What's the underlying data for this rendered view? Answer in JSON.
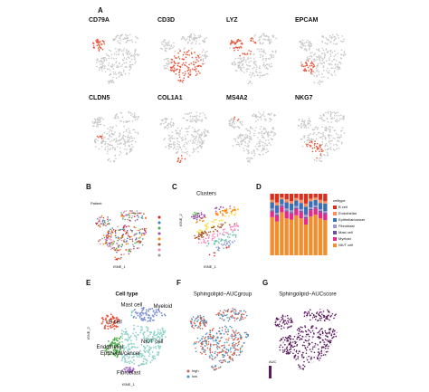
{
  "panel_a": {
    "label": "A",
    "genes": [
      "CD79A",
      "CD3D",
      "LYZ",
      "EPCAM",
      "CLDN5",
      "COL1A1",
      "MS4A2",
      "NKG7"
    ]
  },
  "panel_b": {
    "label": "B",
    "title": "Patient",
    "x_axis": "tSNE_1",
    "y_axis": "tSNE_2"
  },
  "panel_c": {
    "label": "C",
    "title": "Clusters",
    "x_axis": "tSNE_1",
    "y_axis": "tSNE_2"
  },
  "panel_d": {
    "label": "D"
  },
  "chart_data": {
    "type": "bar",
    "stacked": true,
    "legend_title": "celltype",
    "categories": [
      null,
      null,
      null,
      null,
      null,
      null,
      null,
      null,
      null,
      null,
      null,
      null
    ],
    "ylim": [
      0,
      1
    ],
    "series": [
      {
        "name": "B cell",
        "color": "#d7301f",
        "values": [
          0.1,
          0.14,
          0.06,
          0.09,
          0.12,
          0.07,
          0.1,
          0.16,
          0.08,
          0.06,
          0.1,
          0.12
        ]
      },
      {
        "name": "Endothelial",
        "color": "#fc8d59",
        "values": [
          0.04,
          0.05,
          0.03,
          0.05,
          0.04,
          0.04,
          0.05,
          0.05,
          0.04,
          0.04,
          0.05,
          0.04
        ]
      },
      {
        "name": "Epithelial/cancer",
        "color": "#3b6fb6",
        "values": [
          0.1,
          0.12,
          0.08,
          0.1,
          0.11,
          0.09,
          0.1,
          0.13,
          0.1,
          0.09,
          0.1,
          0.12
        ]
      },
      {
        "name": "Fibroblast",
        "color": "#9e9ac8",
        "values": [
          0.03,
          0.03,
          0.02,
          0.03,
          0.03,
          0.03,
          0.03,
          0.04,
          0.03,
          0.03,
          0.03,
          0.03
        ]
      },
      {
        "name": "Mast cell",
        "color": "#6a51a3",
        "values": [
          0.02,
          0.02,
          0.02,
          0.02,
          0.02,
          0.02,
          0.02,
          0.02,
          0.02,
          0.02,
          0.02,
          0.02
        ]
      },
      {
        "name": "Myeloid",
        "color": "#e7298a",
        "values": [
          0.09,
          0.09,
          0.09,
          0.11,
          0.1,
          0.1,
          0.1,
          0.1,
          0.1,
          0.1,
          0.1,
          0.1
        ]
      },
      {
        "name": "NK/T cell",
        "color": "#f28e2b",
        "values": [
          0.62,
          0.55,
          0.7,
          0.6,
          0.58,
          0.65,
          0.6,
          0.5,
          0.63,
          0.66,
          0.6,
          0.57
        ]
      }
    ]
  },
  "panel_e": {
    "label": "E",
    "title": "Cell type",
    "x_axis": "tSNE_1",
    "y_axis": "tSNE_2",
    "cell_labels": [
      "Mast cell",
      "Myeloid",
      "B cell",
      "NK/T cell",
      "Endothelial",
      "Epithelial/cancer",
      "Fibroblast"
    ]
  },
  "panel_f": {
    "label": "F",
    "title": "Sphingolipid−AUCgroup",
    "legend": [
      "high",
      "low"
    ]
  },
  "panel_g": {
    "label": "G",
    "title": "Sphingolipid−AUCscore",
    "legend_title": "AUC"
  }
}
